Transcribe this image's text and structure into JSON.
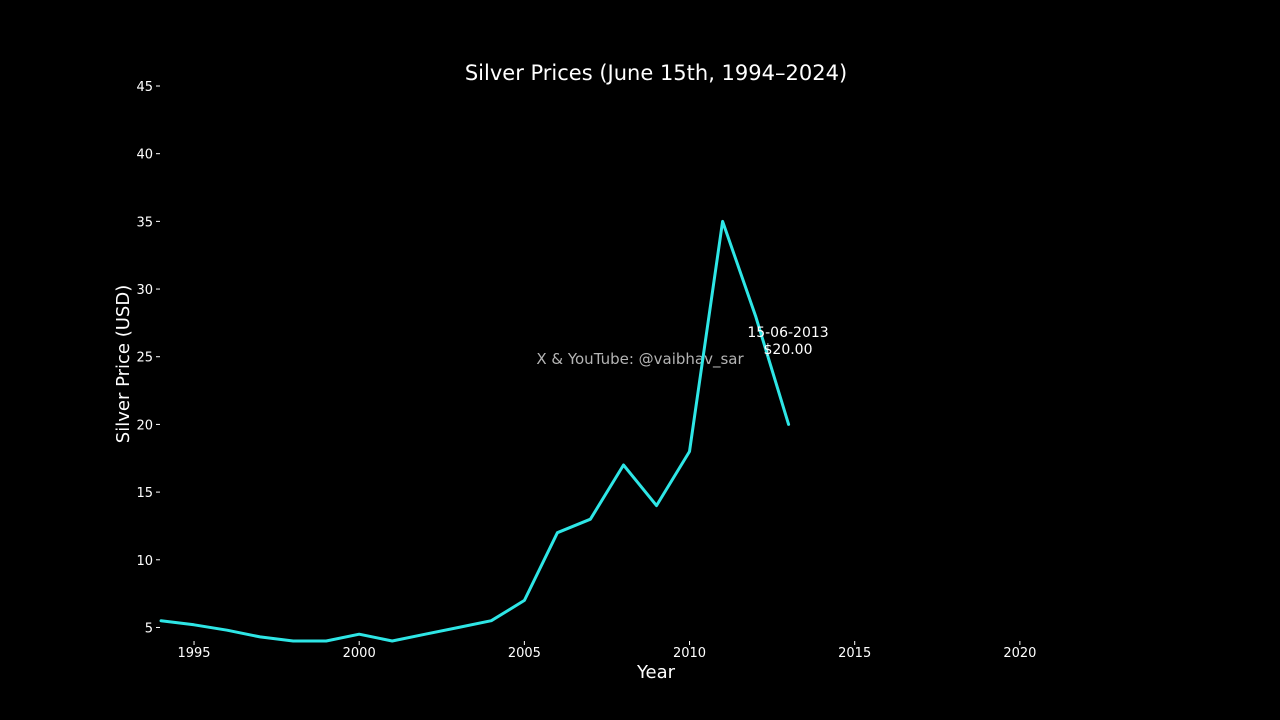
{
  "chart_data": {
    "type": "line",
    "title": "Silver Prices (June 15th, 1994–2024)",
    "xlabel": "Year",
    "ylabel": "Silver Price (USD)",
    "xlim": [
      1994,
      2024
    ],
    "ylim": [
      4,
      45
    ],
    "xticks": [
      1995,
      2000,
      2005,
      2010,
      2015,
      2020
    ],
    "yticks": [
      5,
      10,
      15,
      20,
      25,
      30,
      35,
      40,
      45
    ],
    "grid": false,
    "series": [
      {
        "color": "#2ee6e6",
        "x": [
          1994,
          1995,
          1996,
          1997,
          1998,
          1999,
          2000,
          2001,
          2002,
          2003,
          2004,
          2005,
          2006,
          2007,
          2008,
          2009,
          2010,
          2011,
          2012,
          2013
        ],
        "y": [
          5.5,
          5.2,
          4.8,
          4.3,
          4.0,
          4.0,
          4.5,
          4.0,
          4.5,
          5.0,
          5.5,
          7.0,
          12.0,
          13.0,
          17.0,
          14.0,
          18.0,
          35.0,
          28.0,
          20.0
        ]
      }
    ],
    "annotation": {
      "date": "15-06-2013",
      "price": "$20.00",
      "color": "#ffff66"
    },
    "watermark": "X & YouTube: @vaibhav_sar"
  }
}
